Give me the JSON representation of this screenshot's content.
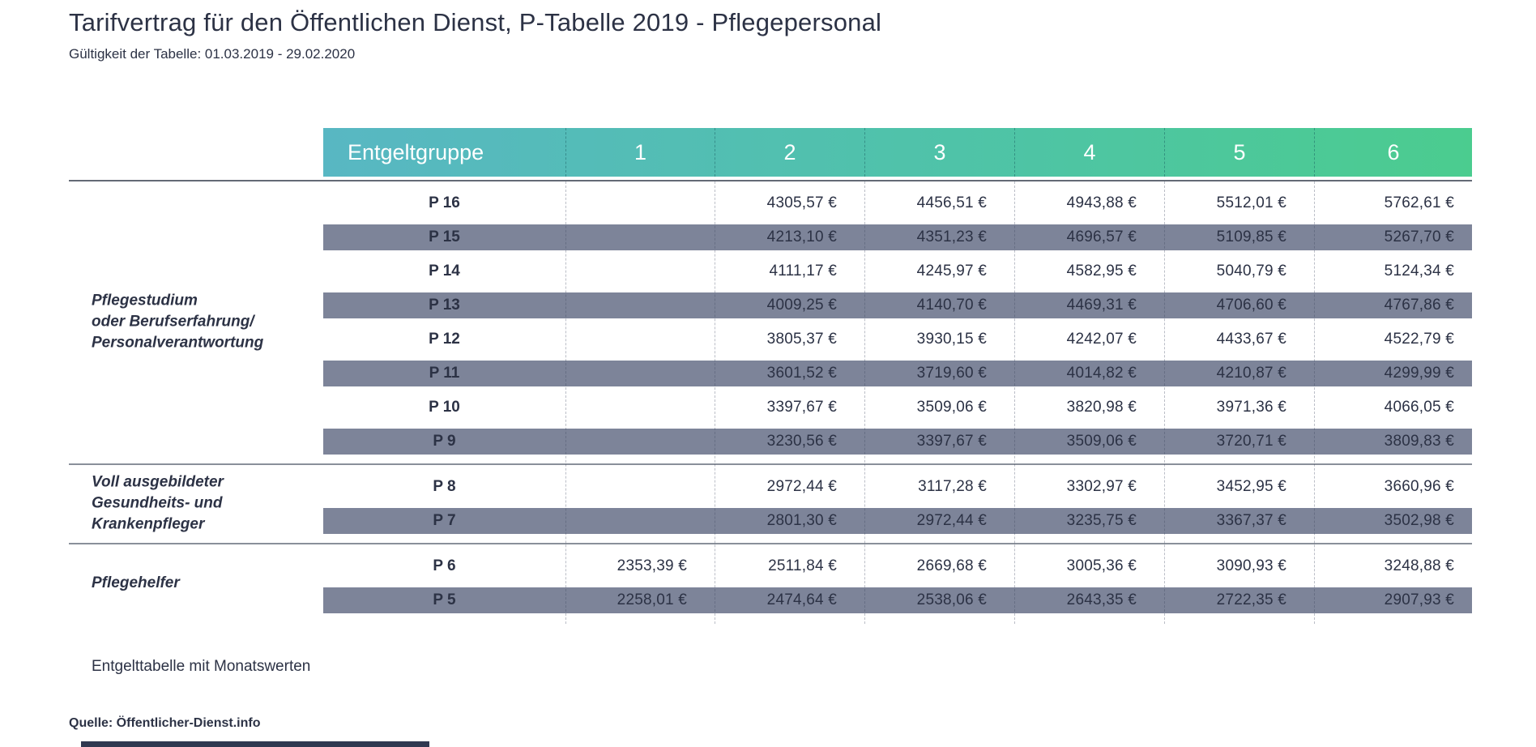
{
  "page": {
    "title": "Tarifvertrag für den Öffentlichen Dienst, P-Tabelle 2019 - Pflegepersonal",
    "subtitle": "Gültigkeit der Tabelle: 01.03.2019 - 29.02.2020",
    "footnote": "Entgelttabelle mit Monatswerten",
    "source": "Quelle: Öffentlicher-Dienst.info"
  },
  "colors": {
    "header_gradient_start": "#58b7c3",
    "header_gradient_end": "#4bcc8f",
    "shaded_row": "#7d8499",
    "text": "#2c3245",
    "bottom_bar": "#2f3850"
  },
  "chart_data": {
    "type": "table",
    "title": "Tarifvertrag für den Öffentlichen Dienst, P-Tabelle 2019 - Pflegepersonal",
    "subtitle": "Gültigkeit der Tabelle: 01.03.2019 - 29.02.2020",
    "columns": [
      "Entgeltgruppe",
      "1",
      "2",
      "3",
      "4",
      "5",
      "6"
    ],
    "groups": [
      {
        "label": "Pflegestudium\noder Berufserfahrung/\nPersonalverantwortung",
        "rows": [
          {
            "label": "P 16",
            "values": [
              "",
              "4305,57 €",
              "4456,51 €",
              "4943,88 €",
              "5512,01 €",
              "5762,61 €"
            ]
          },
          {
            "label": "P 15",
            "values": [
              "",
              "4213,10 €",
              "4351,23 €",
              "4696,57 €",
              "5109,85 €",
              "5267,70 €"
            ]
          },
          {
            "label": "P 14",
            "values": [
              "",
              "4111,17 €",
              "4245,97 €",
              "4582,95 €",
              "5040,79 €",
              "5124,34 €"
            ]
          },
          {
            "label": "P 13",
            "values": [
              "",
              "4009,25 €",
              "4140,70 €",
              "4469,31 €",
              "4706,60 €",
              "4767,86 €"
            ]
          },
          {
            "label": "P 12",
            "values": [
              "",
              "3805,37 €",
              "3930,15 €",
              "4242,07 €",
              "4433,67 €",
              "4522,79 €"
            ]
          },
          {
            "label": "P 11",
            "values": [
              "",
              "3601,52 €",
              "3719,60 €",
              "4014,82 €",
              "4210,87 €",
              "4299,99 €"
            ]
          },
          {
            "label": "P 10",
            "values": [
              "",
              "3397,67 €",
              "3509,06 €",
              "3820,98 €",
              "3971,36 €",
              "4066,05 €"
            ]
          },
          {
            "label": "P 9",
            "values": [
              "",
              "3230,56 €",
              "3397,67 €",
              "3509,06 €",
              "3720,71 €",
              "3809,83 €"
            ]
          }
        ]
      },
      {
        "label": "Voll ausgebildeter\nGesundheits- und\nKrankenpfleger",
        "rows": [
          {
            "label": "P 8",
            "values": [
              "",
              "2972,44 €",
              "3117,28 €",
              "3302,97 €",
              "3452,95 €",
              "3660,96 €"
            ]
          },
          {
            "label": "P 7",
            "values": [
              "",
              "2801,30 €",
              "2972,44 €",
              "3235,75 €",
              "3367,37 €",
              "3502,98 €"
            ]
          }
        ]
      },
      {
        "label": "Pflegehelfer",
        "rows": [
          {
            "label": "P 6",
            "values": [
              "2353,39 €",
              "2511,84 €",
              "2669,68 €",
              "3005,36 €",
              "3090,93 €",
              "3248,88 €"
            ]
          },
          {
            "label": "P 5",
            "values": [
              "2258,01 €",
              "2474,64 €",
              "2538,06 €",
              "2643,35 €",
              "2722,35 €",
              "2907,93 €"
            ]
          }
        ]
      }
    ],
    "footnote": "Entgelttabelle mit Monatswerten",
    "source": "Quelle: Öffentlicher-Dienst.info",
    "layout": {
      "shaded_rows": "every second row starting at P 15",
      "currency": "EUR",
      "decimal_separator": ","
    }
  }
}
